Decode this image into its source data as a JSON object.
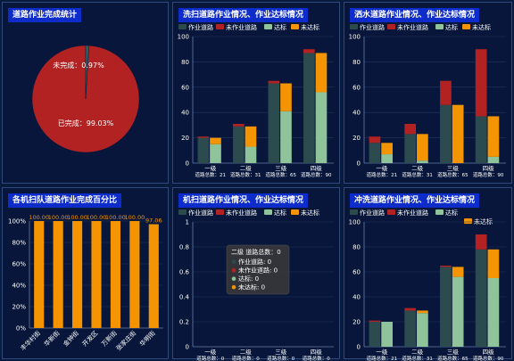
{
  "colors": {
    "work_road": "#2c4b4e",
    "not_work_road": "#b22222",
    "reached": "#8fc39a",
    "not_reached": "#f39400",
    "pie_done": "#b22222",
    "pie_undone": "#3d5a5a",
    "team_bar": "#f39400"
  },
  "panels": {
    "p1": {
      "title": "道路作业完成统计"
    },
    "p2": {
      "title": "洗扫道路作业情况、作业达标情况"
    },
    "p3": {
      "title": "洒水道路作业情况、作业达标情况"
    },
    "p4": {
      "title": "各机扫队道路作业完成百分比"
    },
    "p5": {
      "title": "机扫道路作业情况、作业达标情况"
    },
    "p6": {
      "title": "冲洗道路作业情况、作业达标情况"
    }
  },
  "tooltip": {
    "header": "二级 道路总数：0",
    "items": [
      {
        "label": "作业道路: 0",
        "color": "#2c4b4e"
      },
      {
        "label": "未作业道路: 0",
        "color": "#b22222"
      },
      {
        "label": "达标: 0",
        "color": "#8fc39a"
      },
      {
        "label": "未达标: 0",
        "color": "#f39400"
      }
    ]
  },
  "chart_data": [
    {
      "type": "pie",
      "slices": [
        {
          "label": "已完成：99.03%",
          "value": 99.03
        },
        {
          "label": "未完成：0.97%",
          "value": 0.97
        }
      ]
    },
    {
      "type": "bar",
      "legend": [
        "作业道路",
        "未作业道路",
        "达标",
        "未达标"
      ],
      "categories": [
        "一级",
        "二级",
        "三级",
        "四级"
      ],
      "sublabels": [
        "道路总数：21",
        "道路总数：31",
        "道路总数：65",
        "道路总数：90"
      ],
      "ylim": [
        0,
        100
      ],
      "yticks": [
        0,
        20,
        40,
        60,
        80,
        100
      ],
      "work": [
        20,
        29,
        63,
        87
      ],
      "not_work": [
        1,
        2,
        2,
        3
      ],
      "reached": [
        15,
        13,
        41,
        56
      ],
      "not_reached": [
        5,
        16,
        22,
        31
      ]
    },
    {
      "type": "bar",
      "legend": [
        "作业道路",
        "未作业道路",
        "达标",
        "未达标"
      ],
      "categories": [
        "一级",
        "二级",
        "三级",
        "四级"
      ],
      "sublabels": [
        "道路总数：21",
        "道路总数：31",
        "道路总数：65",
        "道路总数：90"
      ],
      "ylim": [
        0,
        100
      ],
      "yticks": [
        0,
        20,
        40,
        60,
        80,
        100
      ],
      "work": [
        16,
        23,
        46,
        37
      ],
      "not_work": [
        5,
        8,
        19,
        53
      ],
      "reached": [
        7,
        2,
        0,
        5
      ],
      "not_reached": [
        9,
        21,
        46,
        32
      ]
    },
    {
      "type": "bar",
      "categories": [
        "丰华村街",
        "华新街",
        "金钟街",
        "开发区",
        "万新街",
        "张家庄街",
        "华明街"
      ],
      "values": [
        100.0,
        100.0,
        100.0,
        100.0,
        100.0,
        100.0,
        97.06
      ],
      "labels": [
        "100.00",
        "100.00",
        "100.00",
        "100.00",
        "100.00",
        "100.00",
        "97.06"
      ],
      "ylim": [
        0,
        100
      ],
      "yticks": [
        "0%",
        "20%",
        "40%",
        "60%",
        "80%",
        "100%"
      ]
    },
    {
      "type": "bar",
      "legend": [
        "作业道路",
        "未作业道路",
        "达标",
        "未达标"
      ],
      "categories": [
        "一级",
        "二级",
        "三级",
        "四级"
      ],
      "sublabels": [
        "道路总数：0",
        "道路总数：0",
        "道路总数：0",
        "道路总数：0"
      ],
      "ylim": [
        0,
        1
      ],
      "yticks": [
        0,
        0.2,
        0.4,
        0.6,
        0.8,
        1
      ],
      "work": [
        0,
        0,
        0,
        0
      ],
      "not_work": [
        0,
        0,
        0,
        0
      ],
      "reached": [
        0,
        0,
        0,
        0
      ],
      "not_reached": [
        0,
        0,
        0,
        0
      ]
    },
    {
      "type": "bar",
      "legend": [
        "作业道路",
        "未作业道路",
        "达标",
        "未达标"
      ],
      "categories": [
        "一级",
        "二级",
        "三级",
        "四级"
      ],
      "sublabels": [
        "道路总数：21",
        "道路总数：31",
        "道路总数：65",
        "道路总数：90"
      ],
      "ylim": [
        0,
        100
      ],
      "yticks": [
        0,
        20,
        40,
        60,
        80,
        100
      ],
      "work": [
        20,
        29,
        64,
        78
      ],
      "not_work": [
        1,
        2,
        1,
        12
      ],
      "reached": [
        20,
        27,
        56,
        55
      ],
      "not_reached": [
        0,
        2,
        8,
        23
      ]
    }
  ]
}
